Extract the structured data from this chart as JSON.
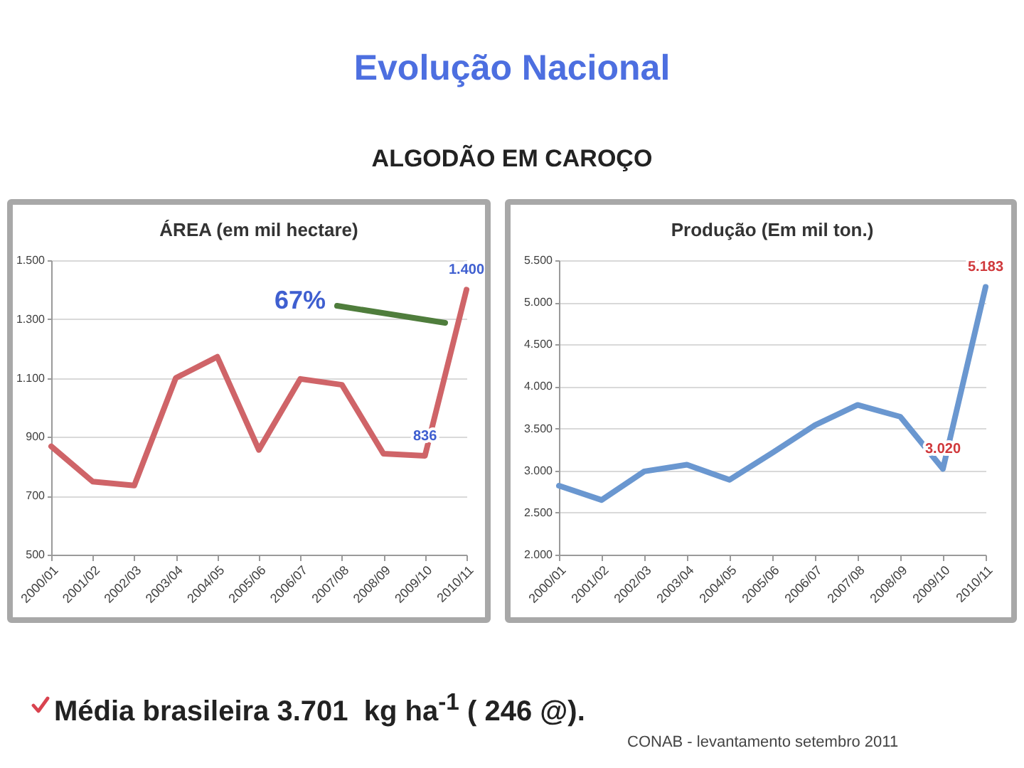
{
  "chart_data": [
    {
      "type": "line",
      "title": "ÁREA (em mil hectare)",
      "categories": [
        "2000/01",
        "2001/02",
        "2002/03",
        "2003/04",
        "2004/05",
        "2005/06",
        "2006/07",
        "2007/08",
        "2008/09",
        "2009/10",
        "2010/11"
      ],
      "values": [
        868,
        748,
        735,
        1100,
        1172,
        856,
        1097,
        1077,
        843,
        836,
        1400
      ],
      "color": "#cf6468",
      "value_labels": [
        null,
        null,
        null,
        null,
        null,
        null,
        null,
        null,
        null,
        "836",
        "1.400"
      ],
      "ylim": [
        500,
        1500
      ],
      "yticks": [
        500,
        700,
        900,
        {
          "value": 1100,
          "label": "1.100"
        },
        {
          "value": 1300,
          "label": "1.300"
        },
        {
          "value": 1500,
          "label": "1.500"
        }
      ],
      "grid": "y",
      "annotations": [
        "Evolução Nacional",
        "ALGODÃO EM CAROÇO",
        "67%"
      ]
    },
    {
      "type": "line",
      "title": "Produção (Em mil ton.)",
      "categories": [
        "2000/01",
        "2001/02",
        "2002/03",
        "2003/04",
        "2004/05",
        "2005/06",
        "2006/07",
        "2007/08",
        "2008/09",
        "2009/10",
        "2010/11"
      ],
      "values": [
        2820,
        2650,
        2990,
        3070,
        2890,
        3210,
        3540,
        3780,
        3640,
        3020,
        5183
      ],
      "color": "#6a97d0",
      "value_labels": [
        null,
        null,
        null,
        null,
        null,
        null,
        null,
        null,
        null,
        "3.020",
        "5.183"
      ],
      "ylim": [
        2000,
        5500
      ],
      "yticks": [
        {
          "value": 2000,
          "label": "2.000"
        },
        {
          "value": 2500,
          "label": "2.500"
        },
        {
          "value": 3000,
          "label": "3.000"
        },
        {
          "value": 3500,
          "label": "3.500"
        },
        {
          "value": 4000,
          "label": "4.000"
        },
        {
          "value": 4500,
          "label": "4.500"
        },
        {
          "value": 5000,
          "label": "5.000"
        },
        {
          "value": 5500,
          "label": "5.500"
        }
      ],
      "grid": "y",
      "annotations": [
        "Média brasileira 3.701  kg ha$^{-1}$ ( 246 @).",
        "CONAB - levantamento setembro 2011"
      ]
    }
  ]
}
